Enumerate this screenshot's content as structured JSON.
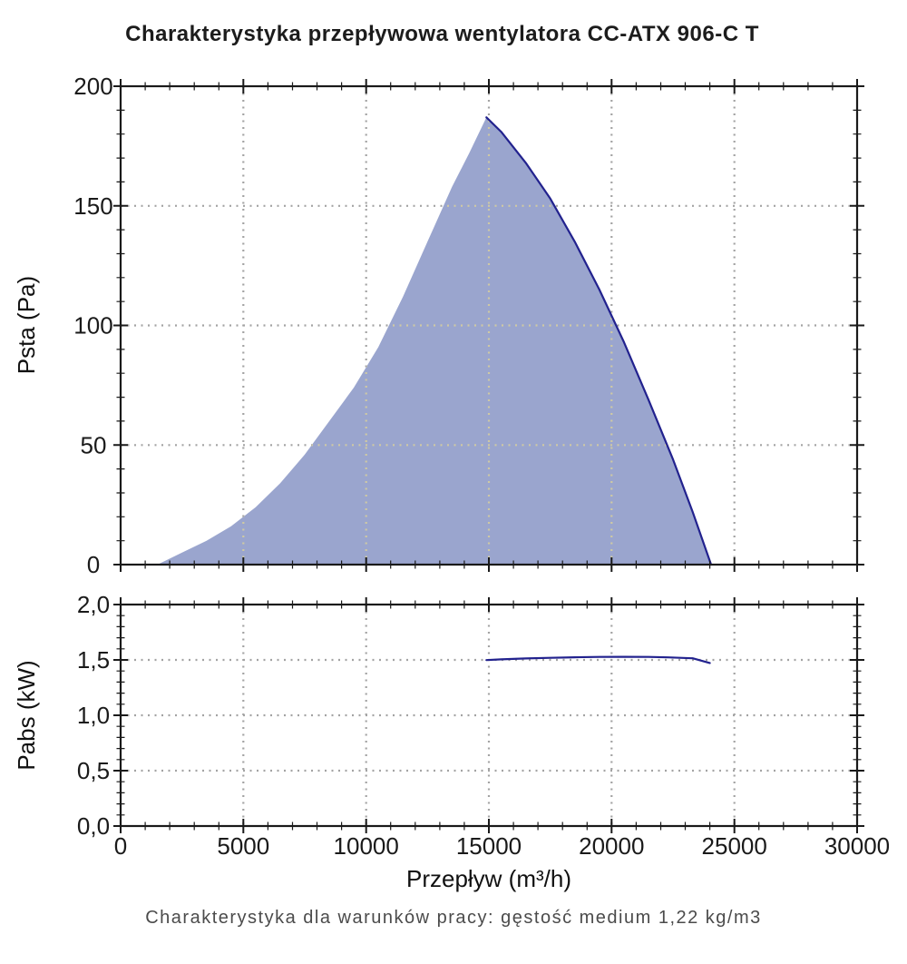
{
  "title": "Charakterystyka przepływowa wentylatora CC-ATX 906-C T",
  "caption": "Charakterystyka dla warunków pracy: gęstość medium 1,22 kg/m3",
  "colors": {
    "curve_line": "#22228E",
    "area_fill": "#9AA5CE",
    "grid": "#A3A3A3",
    "grid_on_fill": "#CFC9A4",
    "axis": "#1A1A1A",
    "title_text": "#1C1C1C",
    "caption_text": "#4B4B4B"
  },
  "x_axis": {
    "label": "Przepływ (m³/h)",
    "range": [
      0,
      30000
    ],
    "tick_values": [
      0,
      5000,
      10000,
      15000,
      20000,
      25000,
      30000
    ],
    "tick_labels": [
      "0",
      "5000",
      "10000",
      "15000",
      "20000",
      "25000",
      "30000"
    ],
    "minor_step": 1000
  },
  "chart_data": [
    {
      "type": "area",
      "title": "Charakterystyka przepływowa wentylatora CC-ATX 906-C T",
      "ylabel": "Psta (Pa)",
      "ylim": [
        0,
        200
      ],
      "y_tick_values": [
        0,
        50,
        100,
        150,
        200
      ],
      "y_tick_labels": [
        "0",
        "50",
        "100",
        "150",
        "200"
      ],
      "y_minor_step": 10,
      "grid": "dotted",
      "legend": "none",
      "series": [
        {
          "name": "obszar-pracy-granica",
          "role": "area-boundary",
          "points": [
            [
              1500,
              0
            ],
            [
              2500,
              5
            ],
            [
              3500,
              10
            ],
            [
              4500,
              16
            ],
            [
              5500,
              24
            ],
            [
              6500,
              34
            ],
            [
              7500,
              46
            ],
            [
              8500,
              60
            ],
            [
              9500,
              74
            ],
            [
              10500,
              91
            ],
            [
              11500,
              112
            ],
            [
              12500,
              135
            ],
            [
              13500,
              158
            ],
            [
              14200,
              172
            ],
            [
              14900,
              187
            ]
          ]
        },
        {
          "name": "Psta",
          "role": "line",
          "points": [
            [
              14900,
              187
            ],
            [
              15500,
              181
            ],
            [
              16500,
              168
            ],
            [
              17500,
              153
            ],
            [
              18500,
              135
            ],
            [
              19500,
              115
            ],
            [
              20500,
              93
            ],
            [
              21500,
              69
            ],
            [
              22500,
              44
            ],
            [
              23300,
              22
            ],
            [
              24050,
              0
            ]
          ]
        }
      ]
    },
    {
      "type": "line",
      "ylabel": "Pabs (kW)",
      "xlabel": "Przepływ (m³/h)",
      "ylim": [
        0,
        2
      ],
      "y_tick_values": [
        0,
        0.5,
        1,
        1.5,
        2
      ],
      "y_tick_labels": [
        "0,0",
        "0,5",
        "1,0",
        "1,5",
        "2,0"
      ],
      "y_minor_step": 0.1,
      "grid": "dotted",
      "legend": "none",
      "series": [
        {
          "name": "Pabs",
          "role": "line",
          "points": [
            [
              14900,
              1.498
            ],
            [
              15500,
              1.505
            ],
            [
              16500,
              1.513
            ],
            [
              17500,
              1.519
            ],
            [
              18500,
              1.524
            ],
            [
              19500,
              1.527
            ],
            [
              20500,
              1.528
            ],
            [
              21500,
              1.527
            ],
            [
              22300,
              1.523
            ],
            [
              23300,
              1.515
            ],
            [
              24000,
              1.472
            ]
          ]
        }
      ]
    }
  ]
}
